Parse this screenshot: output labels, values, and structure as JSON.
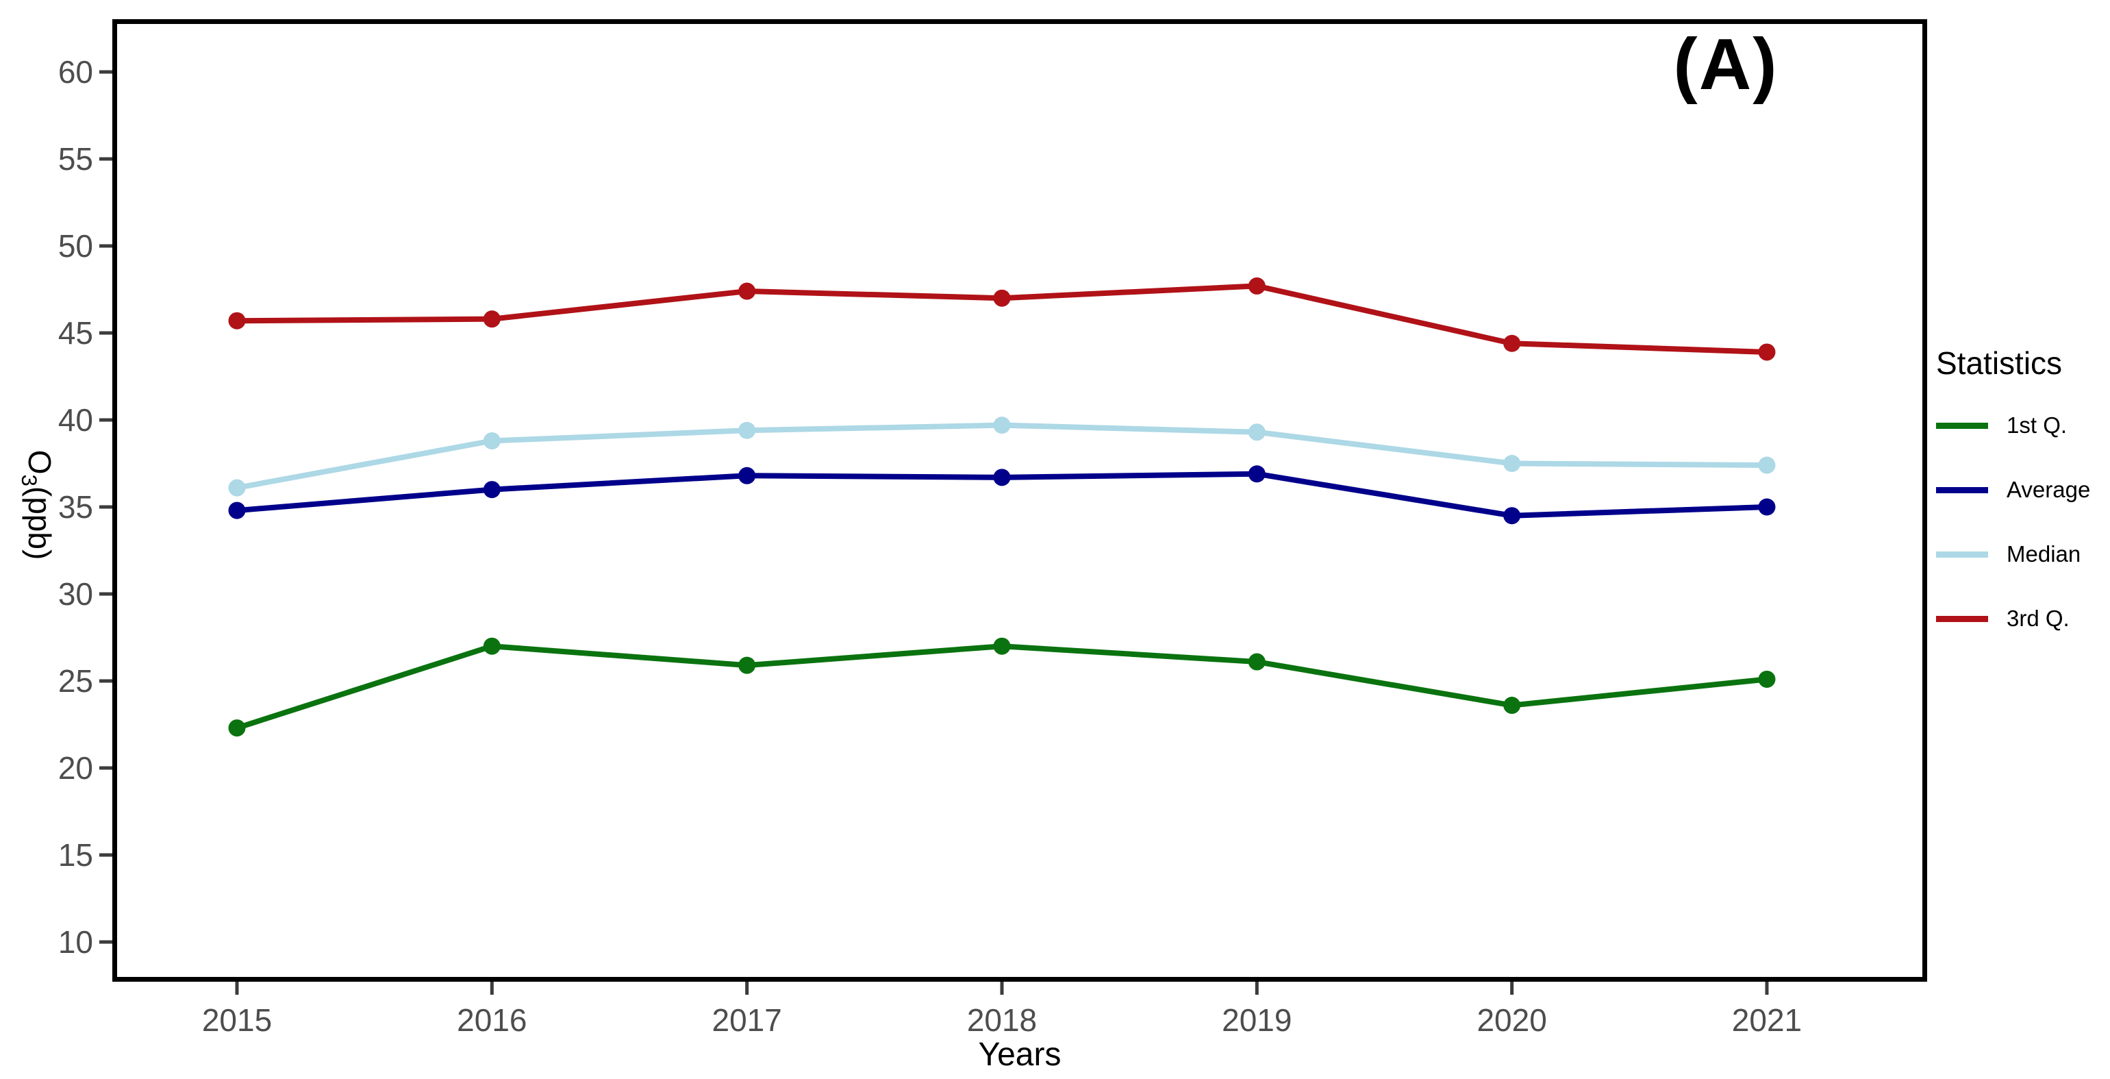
{
  "annotation": "(A)",
  "axes": {
    "x_label": "Years",
    "y_label_main": "O",
    "y_label_sub": "3",
    "y_label_rest": "(ppb)"
  },
  "legend": {
    "title": "Statistics",
    "items": [
      {
        "label": "1st Q.",
        "color": "#0a730f"
      },
      {
        "label": "Average",
        "color": "#00008b"
      },
      {
        "label": "Median",
        "color": "#add8e6"
      },
      {
        "label": "3rd Q.",
        "color": "#b01217"
      }
    ]
  },
  "chart_data": {
    "type": "line",
    "title": "(A)",
    "xlabel": "Years",
    "ylabel": "O3(ppb)",
    "x": [
      "2015",
      "2016",
      "2017",
      "2018",
      "2019",
      "2020",
      "2021"
    ],
    "yticks": [
      10,
      15,
      20,
      25,
      30,
      35,
      40,
      45,
      50,
      55,
      60
    ],
    "ylim": [
      7.5,
      62.5
    ],
    "grid": false,
    "legend_position": "right-outside",
    "marker": "circle",
    "series": [
      {
        "name": "1st Q.",
        "color": "#0a730f",
        "values": [
          22.3,
          27.0,
          25.9,
          27.0,
          26.1,
          23.6,
          25.1
        ]
      },
      {
        "name": "Average",
        "color": "#00008b",
        "values": [
          34.8,
          36.0,
          36.8,
          36.7,
          36.9,
          34.5,
          35.0
        ]
      },
      {
        "name": "Median",
        "color": "#add8e6",
        "values": [
          36.1,
          38.8,
          39.4,
          39.7,
          39.3,
          37.5,
          37.4
        ]
      },
      {
        "name": "3rd Q.",
        "color": "#b01217",
        "values": [
          45.7,
          45.8,
          47.4,
          47.0,
          47.7,
          44.4,
          43.9
        ]
      }
    ]
  }
}
